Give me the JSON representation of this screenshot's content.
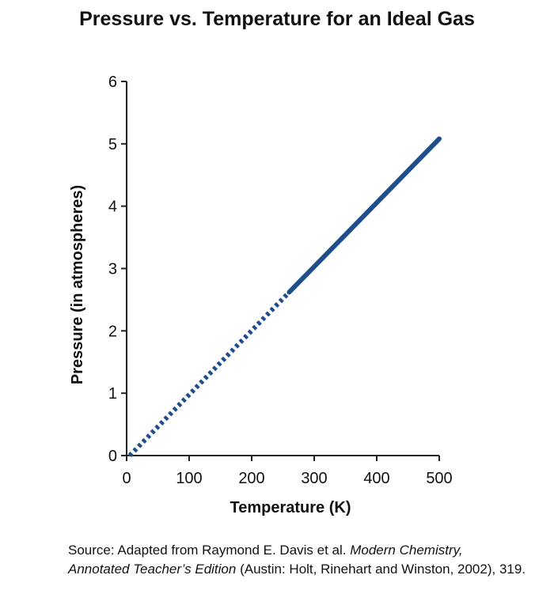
{
  "chart_data": {
    "type": "line",
    "title": "Pressure vs. Temperature for an Ideal Gas",
    "xlabel": "Temperature (K)",
    "ylabel": "Pressure (in atmospheres)",
    "xlim": [
      0,
      500
    ],
    "ylim": [
      0,
      6
    ],
    "x_ticks": [
      "0",
      "100",
      "200",
      "300",
      "400",
      "500"
    ],
    "y_ticks": [
      "0",
      "1",
      "2",
      "3",
      "4",
      "5",
      "6"
    ],
    "grid": false,
    "legend": "none",
    "series": [
      {
        "style": "dotted",
        "color": "#1f4e8c",
        "points": [
          [
            5,
            0.0
          ],
          [
            260,
            2.62
          ]
        ]
      },
      {
        "style": "solid",
        "color": "#1f4e8c",
        "points": [
          [
            260,
            2.62
          ],
          [
            500,
            5.08
          ]
        ]
      }
    ]
  },
  "source": {
    "prefix": "Source: Adapted from Raymond E. Davis et al. ",
    "italic": "Modern Chemistry, Annotated Teacher’s Edition",
    "suffix": " (Austin: Holt, Rinehart and Winston, 2002), 319."
  }
}
